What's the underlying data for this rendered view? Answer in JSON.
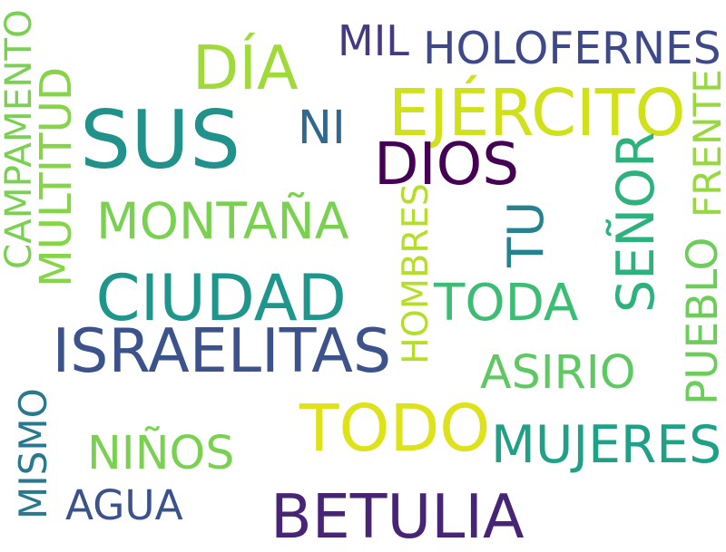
{
  "words": [
    {
      "id": "sus",
      "text": "SUS",
      "color": "#21918c",
      "orientation": "horizontal"
    },
    {
      "id": "todo",
      "text": "TODO",
      "color": "#dde318",
      "orientation": "horizontal"
    },
    {
      "id": "betulia",
      "text": "BETULIA",
      "color": "#482475",
      "orientation": "horizontal"
    },
    {
      "id": "ciudad",
      "text": "CIUDAD",
      "color": "#1f968b",
      "orientation": "horizontal"
    },
    {
      "id": "ejercito",
      "text": "EJÉRCITO",
      "color": "#d0e11c",
      "orientation": "horizontal"
    },
    {
      "id": "israelitas",
      "text": "ISRAELITAS",
      "color": "#3b528b",
      "orientation": "horizontal"
    },
    {
      "id": "montana",
      "text": "MONTAÑA",
      "color": "#7ad151",
      "orientation": "horizontal"
    },
    {
      "id": "dios",
      "text": "DIOS",
      "color": "#440154",
      "orientation": "horizontal"
    },
    {
      "id": "dia",
      "text": "DÍA",
      "color": "#a0da39",
      "orientation": "horizontal"
    },
    {
      "id": "holofernes",
      "text": "HOLOFERNES",
      "color": "#3e4989",
      "orientation": "horizontal"
    },
    {
      "id": "toda",
      "text": "TODA",
      "color": "#3dbc74",
      "orientation": "horizontal"
    },
    {
      "id": "mujeres",
      "text": "MUJERES",
      "color": "#1fa187",
      "orientation": "horizontal"
    },
    {
      "id": "senor",
      "text": "SEÑOR",
      "color": "#2db27d",
      "orientation": "vertical"
    },
    {
      "id": "tu",
      "text": "TU",
      "color": "#26828e",
      "orientation": "vertical"
    },
    {
      "id": "ninos",
      "text": "NIÑOS",
      "color": "#7ad151",
      "orientation": "horizontal"
    },
    {
      "id": "agua",
      "text": "AGUA",
      "color": "#3b528b",
      "orientation": "horizontal"
    },
    {
      "id": "asirio",
      "text": "ASIRIO",
      "color": "#5ec962",
      "orientation": "horizontal"
    },
    {
      "id": "ni",
      "text": "NI",
      "color": "#31688e",
      "orientation": "horizontal"
    },
    {
      "id": "mil",
      "text": "MIL",
      "color": "#443983",
      "orientation": "horizontal"
    },
    {
      "id": "multitud",
      "text": "MULTITUD",
      "color": "#86d549",
      "orientation": "vertical"
    },
    {
      "id": "campamento",
      "text": "CAMPAMENTO",
      "color": "#7ad151",
      "orientation": "vertical"
    },
    {
      "id": "mismo",
      "text": "MISMO",
      "color": "#2a788e",
      "orientation": "vertical"
    },
    {
      "id": "hombres",
      "text": "HOMBRES",
      "color": "#b5de2b",
      "orientation": "vertical"
    },
    {
      "id": "pueblo",
      "text": "PUEBLO",
      "color": "#6ccd5a",
      "orientation": "vertical"
    },
    {
      "id": "frente",
      "text": "FRENTE",
      "color": "#95d840",
      "orientation": "vertical"
    }
  ]
}
